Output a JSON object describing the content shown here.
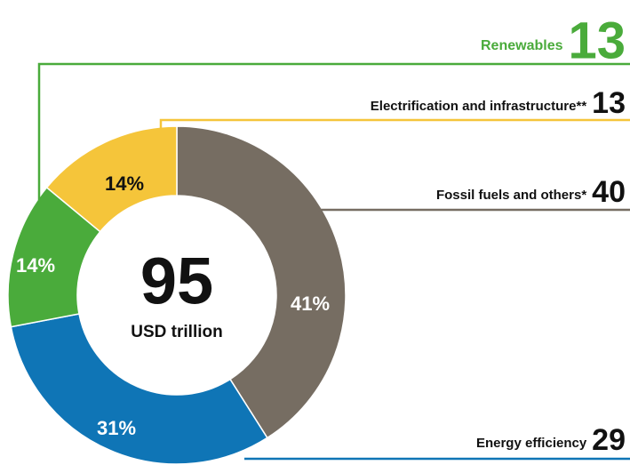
{
  "chart_data": {
    "type": "pie",
    "donut": true,
    "center_value": 95,
    "center_label": "USD trillion",
    "categories": [
      "Fossil fuels and others*",
      "Energy efficiency",
      "Renewables",
      "Electrification and infrastructure**"
    ],
    "values": [
      41,
      31,
      14,
      14
    ],
    "value_labels": [
      "41%",
      "31%",
      "14%",
      "14%"
    ],
    "amounts": [
      40,
      29,
      13,
      13
    ],
    "colors": [
      "#766d62",
      "#0f75b6",
      "#4aab3b",
      "#f5c53a"
    ]
  }
}
